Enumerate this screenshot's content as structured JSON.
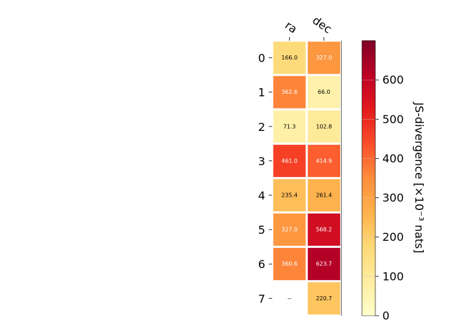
{
  "chart_data": {
    "type": "heatmap",
    "columns": [
      "ra",
      "dec"
    ],
    "rows": [
      "0",
      "1",
      "2",
      "3",
      "4",
      "5",
      "6",
      "7"
    ],
    "values": [
      [
        166.0,
        327.0
      ],
      [
        362.6,
        66.0
      ],
      [
        71.3,
        102.8
      ],
      [
        461.0,
        414.9
      ],
      [
        235.4,
        261.4
      ],
      [
        327.0,
        568.2
      ],
      [
        360.6,
        623.7
      ],
      [
        null,
        220.7
      ]
    ],
    "cell_labels": [
      [
        "166.0",
        "327.0"
      ],
      [
        "362.6",
        "66.0"
      ],
      [
        "71.3",
        "102.8"
      ],
      [
        "461.0",
        "414.9"
      ],
      [
        "235.4",
        "261.4"
      ],
      [
        "327.0",
        "568.2"
      ],
      [
        "360.6",
        "623.7"
      ],
      [
        "--",
        "220.7"
      ]
    ],
    "colorbar": {
      "label": "JS-divergence [×10⁻³ nats]",
      "range": [
        0,
        700
      ],
      "ticks": [
        "0",
        "100",
        "200",
        "300",
        "400",
        "500",
        "600"
      ],
      "colormap": "YlOrRd"
    }
  }
}
